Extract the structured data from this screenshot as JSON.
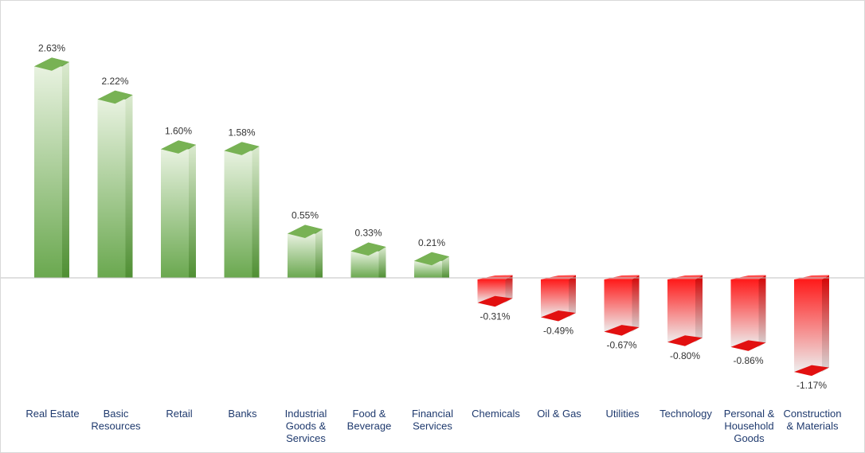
{
  "chart_data": {
    "type": "bar",
    "categories": [
      "Real Estate",
      "Basic Resources",
      "Retail",
      "Banks",
      "Industrial Goods & Services",
      "Food & Beverage",
      "Financial Services",
      "Chemicals",
      "Oil & Gas",
      "Utilities",
      "Technology",
      "Personal & Household Goods",
      "Construction & Materials"
    ],
    "category_label_lines": [
      [
        "Real Estate"
      ],
      [
        "Basic",
        "Resources"
      ],
      [
        "Retail"
      ],
      [
        "Banks"
      ],
      [
        "Industrial",
        "Goods &",
        "Services"
      ],
      [
        "Food &",
        "Beverage"
      ],
      [
        "Financial",
        "Services"
      ],
      [
        "Chemicals"
      ],
      [
        "Oil & Gas"
      ],
      [
        "Utilities"
      ],
      [
        "Technology"
      ],
      [
        "Personal &",
        "Household",
        "Goods"
      ],
      [
        "Construction",
        "& Materials"
      ]
    ],
    "values": [
      2.63,
      2.22,
      1.6,
      1.58,
      0.55,
      0.33,
      0.21,
      -0.31,
      -0.49,
      -0.67,
      -0.8,
      -0.86,
      -1.17
    ],
    "value_labels": [
      "2.63%",
      "2.22%",
      "1.60%",
      "1.58%",
      "0.55%",
      "0.33%",
      "0.21%",
      "-0.31%",
      "-0.49%",
      "-0.67%",
      "-0.80%",
      "-0.86%",
      "-1.17%"
    ],
    "unit": "%",
    "title": "",
    "xlabel": "",
    "ylabel": "",
    "ylim": [
      -1.4,
      2.85
    ],
    "grid": false,
    "legend": "none",
    "style": "3d-prism",
    "colors": {
      "positive": "#6aa84f",
      "positive_light": "#e8f2e0",
      "positive_top": "#5a9a3c",
      "negative": "#ff1a1a",
      "negative_light": "#eeeeee",
      "negative_bottom": "#e21010",
      "baseline": "#bfbfbf",
      "category_text": "#1f3a6e",
      "value_text": "#333333"
    }
  }
}
